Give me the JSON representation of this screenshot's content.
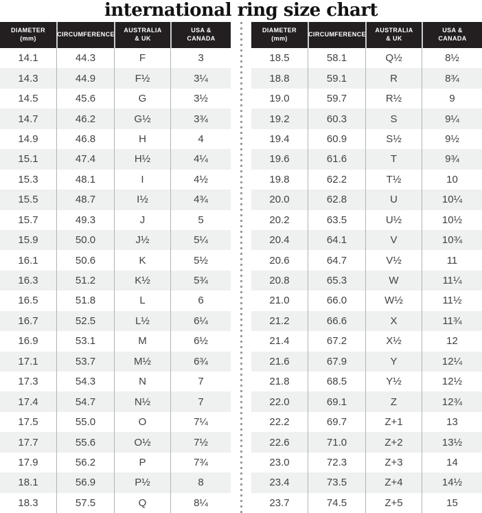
{
  "title": "international ring size chart",
  "colors": {
    "header_bg": "#231f20",
    "header_text": "#ffffff",
    "header_divider": "#cdcdcd",
    "row_alt_bg": "#eff0f0",
    "body_text": "#414042",
    "column_divider": "#b0b3b3",
    "dotted_divider": "#9b9b9b"
  },
  "header_columns": [
    {
      "line1": "DIAMETER",
      "line2": "(mm)"
    },
    {
      "line1": "CIRCUMFERENCE",
      "line2": ""
    },
    {
      "line1": "AUSTRALIA",
      "line2": "& UK"
    },
    {
      "line1": "USA &",
      "line2": "CANADA"
    }
  ],
  "chart_data": {
    "type": "table",
    "title": "international ring size chart",
    "columns": [
      "Diameter (mm)",
      "Circumference",
      "Australia & UK",
      "USA & Canada"
    ],
    "panels": [
      {
        "name": "left",
        "rows": [
          [
            "14.1",
            "44.3",
            "F",
            "3"
          ],
          [
            "14.3",
            "44.9",
            "F½",
            "3¼"
          ],
          [
            "14.5",
            "45.6",
            "G",
            "3½"
          ],
          [
            "14.7",
            "46.2",
            "G½",
            "3¾"
          ],
          [
            "14.9",
            "46.8",
            "H",
            "4"
          ],
          [
            "15.1",
            "47.4",
            "H½",
            "4¼"
          ],
          [
            "15.3",
            "48.1",
            "I",
            "4½"
          ],
          [
            "15.5",
            "48.7",
            "I½",
            "4¾"
          ],
          [
            "15.7",
            "49.3",
            "J",
            "5"
          ],
          [
            "15.9",
            "50.0",
            "J½",
            "5¼"
          ],
          [
            "16.1",
            "50.6",
            "K",
            "5½"
          ],
          [
            "16.3",
            "51.2",
            "K½",
            "5¾"
          ],
          [
            "16.5",
            "51.8",
            "L",
            "6"
          ],
          [
            "16.7",
            "52.5",
            "L½",
            "6¼"
          ],
          [
            "16.9",
            "53.1",
            "M",
            "6½"
          ],
          [
            "17.1",
            "53.7",
            "M½",
            "6¾"
          ],
          [
            "17.3",
            "54.3",
            "N",
            "7"
          ],
          [
            "17.4",
            "54.7",
            "N½",
            "7"
          ],
          [
            "17.5",
            "55.0",
            "O",
            "7¼"
          ],
          [
            "17.7",
            "55.6",
            "O½",
            "7½"
          ],
          [
            "17.9",
            "56.2",
            "P",
            "7¾"
          ],
          [
            "18.1",
            "56.9",
            "P½",
            "8"
          ],
          [
            "18.3",
            "57.5",
            "Q",
            "8¼"
          ]
        ]
      },
      {
        "name": "right",
        "rows": [
          [
            "18.5",
            "58.1",
            "Q½",
            "8½"
          ],
          [
            "18.8",
            "59.1",
            "R",
            "8¾"
          ],
          [
            "19.0",
            "59.7",
            "R½",
            "9"
          ],
          [
            "19.2",
            "60.3",
            "S",
            "9¼"
          ],
          [
            "19.4",
            "60.9",
            "S½",
            "9½"
          ],
          [
            "19.6",
            "61.6",
            "T",
            "9¾"
          ],
          [
            "19.8",
            "62.2",
            "T½",
            "10"
          ],
          [
            "20.0",
            "62.8",
            "U",
            "10¼"
          ],
          [
            "20.2",
            "63.5",
            "U½",
            "10½"
          ],
          [
            "20.4",
            "64.1",
            "V",
            "10¾"
          ],
          [
            "20.6",
            "64.7",
            "V½",
            "11"
          ],
          [
            "20.8",
            "65.3",
            "W",
            "11¼"
          ],
          [
            "21.0",
            "66.0",
            "W½",
            "11½"
          ],
          [
            "21.2",
            "66.6",
            "X",
            "11¾"
          ],
          [
            "21.4",
            "67.2",
            "X½",
            "12"
          ],
          [
            "21.6",
            "67.9",
            "Y",
            "12¼"
          ],
          [
            "21.8",
            "68.5",
            "Y½",
            "12½"
          ],
          [
            "22.0",
            "69.1",
            "Z",
            "12¾"
          ],
          [
            "22.2",
            "69.7",
            "Z+1",
            "13"
          ],
          [
            "22.6",
            "71.0",
            "Z+2",
            "13½"
          ],
          [
            "23.0",
            "72.3",
            "Z+3",
            "14"
          ],
          [
            "23.4",
            "73.5",
            "Z+4",
            "14½"
          ],
          [
            "23.7",
            "74.5",
            "Z+5",
            "15"
          ]
        ]
      }
    ]
  }
}
